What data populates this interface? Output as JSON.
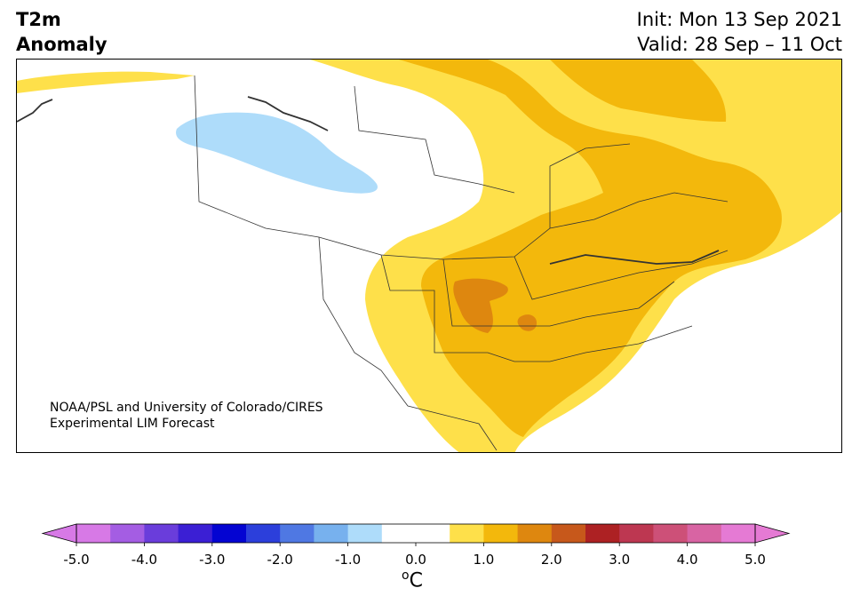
{
  "header": {
    "title_line1": "T2m",
    "title_line2": "Anomaly",
    "init": "Init: Mon 13 Sep 2021",
    "valid": "Valid: 28 Sep – 11 Oct"
  },
  "map": {
    "region": "North America",
    "credit_line1": "NOAA/PSL and University of Colorado/CIRES",
    "credit_line2": "Experimental LIM Forecast",
    "colors": {
      "land": "#ffffff",
      "anom_pos_05_10": "#fee04a",
      "anom_pos_10_15": "#f3b80c",
      "anom_pos_15_20": "#de870f",
      "anom_neg_05_10": "#aedcfa",
      "border": "#333333"
    }
  },
  "colorbar": {
    "unit_base": "C",
    "unit_sup": "o",
    "ticks": [
      "-5.0",
      "-4.0",
      "-3.0",
      "-2.0",
      "-1.0",
      "0.0",
      "1.0",
      "2.0",
      "3.0",
      "4.0",
      "5.0"
    ],
    "tick_values": [
      -5,
      -4,
      -3,
      -2,
      -1,
      0,
      1,
      2,
      3,
      4,
      5
    ],
    "bins": [
      {
        "from": -5.0,
        "to": -4.5,
        "color": "#d779e6"
      },
      {
        "from": -4.5,
        "to": -4.0,
        "color": "#a45de3"
      },
      {
        "from": -4.0,
        "to": -3.5,
        "color": "#6a3ddb"
      },
      {
        "from": -3.5,
        "to": -3.0,
        "color": "#3b1fd4"
      },
      {
        "from": -3.0,
        "to": -2.5,
        "color": "#0404d2"
      },
      {
        "from": -2.5,
        "to": -2.0,
        "color": "#2c3fdb"
      },
      {
        "from": -2.0,
        "to": -1.5,
        "color": "#4f78e3"
      },
      {
        "from": -1.5,
        "to": -1.0,
        "color": "#77b1ee"
      },
      {
        "from": -1.0,
        "to": -0.5,
        "color": "#aedcfa"
      },
      {
        "from": -0.5,
        "to": 0.0,
        "color": "#ffffff"
      },
      {
        "from": 0.0,
        "to": 0.5,
        "color": "#ffffff"
      },
      {
        "from": 0.5,
        "to": 1.0,
        "color": "#fee04a"
      },
      {
        "from": 1.0,
        "to": 1.5,
        "color": "#f3b80c"
      },
      {
        "from": 1.5,
        "to": 2.0,
        "color": "#de870f"
      },
      {
        "from": 2.0,
        "to": 2.5,
        "color": "#c7581b"
      },
      {
        "from": 2.5,
        "to": 3.0,
        "color": "#ad2123"
      },
      {
        "from": 3.0,
        "to": 3.5,
        "color": "#bd3751"
      },
      {
        "from": 3.5,
        "to": 4.0,
        "color": "#cd5078"
      },
      {
        "from": 4.0,
        "to": 4.5,
        "color": "#d864a3"
      },
      {
        "from": 4.5,
        "to": 5.0,
        "color": "#e57ad4"
      }
    ],
    "extend_low_color": "#d779e6",
    "extend_high_color": "#e57ad4"
  }
}
